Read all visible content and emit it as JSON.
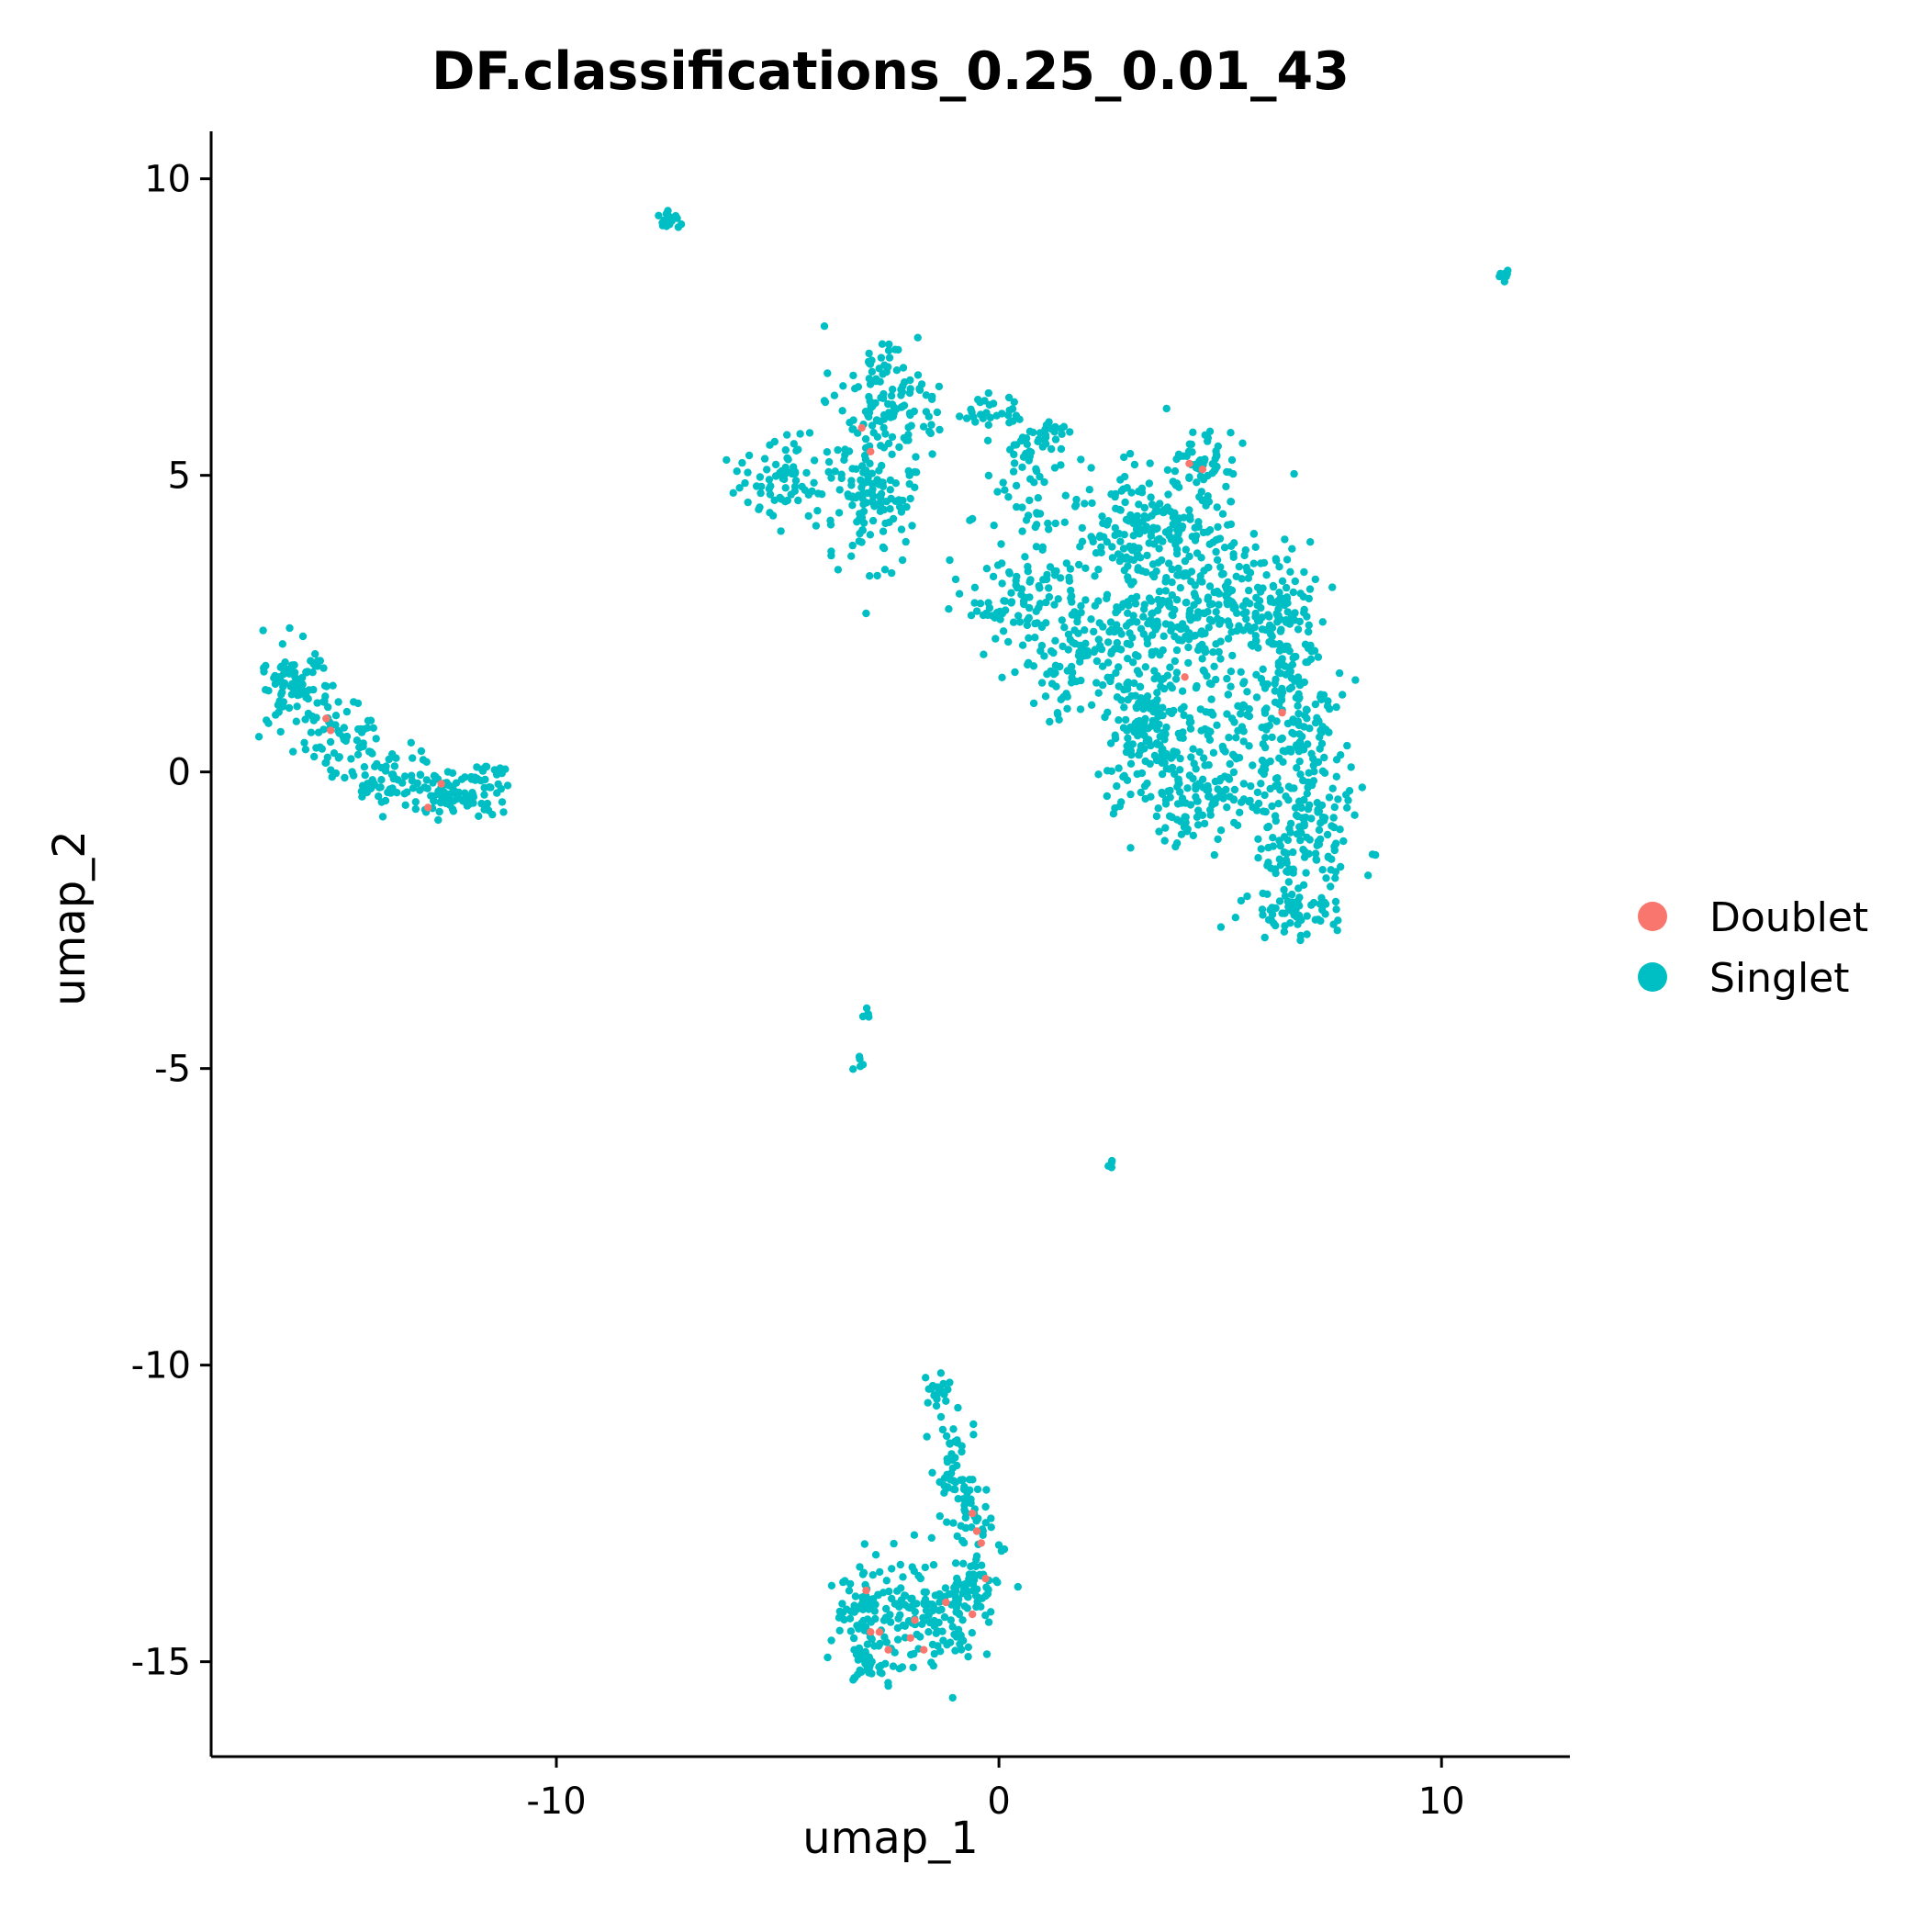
{
  "chart_data": {
    "type": "scatter",
    "title": "DF.classifications_0.25_0.01_43",
    "xlabel": "umap_1",
    "ylabel": "umap_2",
    "xlim": [
      -17.8,
      12.9
    ],
    "ylim": [
      -16.6,
      10.8
    ],
    "x_ticks": [
      -10,
      0,
      10
    ],
    "x_tick_labels": [
      "-10",
      "0",
      "10"
    ],
    "y_ticks": [
      10,
      5,
      0,
      -5,
      -10,
      -15
    ],
    "y_tick_labels": [
      "10",
      "5",
      "0",
      "-5",
      "-10",
      "-15"
    ],
    "grid": false,
    "legend_position": "right",
    "series": [
      {
        "name": "Doublet",
        "color": "#F8766D",
        "points": [
          [
            -3.1,
            5.8
          ],
          [
            -2.9,
            5.4
          ],
          [
            4.3,
            5.2
          ],
          [
            4.6,
            5.1
          ],
          [
            4.2,
            1.6
          ],
          [
            6.4,
            1.0
          ],
          [
            -15.2,
            0.9
          ],
          [
            -15.1,
            0.7
          ],
          [
            -12.6,
            -0.2
          ],
          [
            -12.9,
            -0.6
          ],
          [
            -0.6,
            -12.5
          ],
          [
            -0.5,
            -12.8
          ],
          [
            -0.4,
            -13.0
          ],
          [
            -0.3,
            -13.6
          ],
          [
            -0.6,
            -14.2
          ],
          [
            -1.2,
            -14.0
          ],
          [
            -1.9,
            -14.3
          ],
          [
            -2.7,
            -14.5
          ],
          [
            -2.5,
            -14.8
          ],
          [
            -2.0,
            -14.6
          ],
          [
            -1.7,
            -14.8
          ],
          [
            -2.9,
            -14.5
          ],
          [
            -3.0,
            -13.8
          ]
        ]
      },
      {
        "name": "Singlet",
        "color": "#00BFC4",
        "clusters": [
          {
            "cx": -7.5,
            "cy": 9.3,
            "sx": 0.15,
            "sy": 0.12,
            "n": 16
          },
          {
            "cx": 11.4,
            "cy": 8.4,
            "sx": 0.08,
            "sy": 0.08,
            "n": 8
          },
          {
            "cx": -3.2,
            "cy": -4.9,
            "sx": 0.06,
            "sy": 0.06,
            "n": 5
          },
          {
            "cx": -3.0,
            "cy": -4.1,
            "sx": 0.06,
            "sy": 0.05,
            "n": 5
          },
          {
            "cx": 2.5,
            "cy": -6.6,
            "sx": 0.08,
            "sy": 0.05,
            "n": 6
          },
          {
            "cx": -4.8,
            "cy": 5.0,
            "sx": 0.6,
            "sy": 0.35,
            "n": 70
          },
          {
            "cx": -2.9,
            "cy": 4.6,
            "sx": 0.55,
            "sy": 0.6,
            "n": 130
          },
          {
            "cx": -2.6,
            "cy": 6.2,
            "sx": 0.6,
            "sy": 0.45,
            "n": 120
          },
          {
            "cx": -0.3,
            "cy": 6.1,
            "sx": 0.4,
            "sy": 0.15,
            "n": 25
          },
          {
            "cx": 0.9,
            "cy": 5.7,
            "sx": 0.4,
            "sy": 0.3,
            "n": 50
          },
          {
            "cx": 0.8,
            "cy": 4.4,
            "sx": 0.7,
            "sy": 0.5,
            "n": 40
          },
          {
            "cx": 0.6,
            "cy": 2.9,
            "sx": 0.7,
            "sy": 0.4,
            "n": 90
          },
          {
            "cx": 1.6,
            "cy": 1.8,
            "sx": 0.7,
            "sy": 0.5,
            "n": 90
          },
          {
            "cx": 3.2,
            "cy": 4.2,
            "sx": 0.7,
            "sy": 0.5,
            "n": 150
          },
          {
            "cx": 4.7,
            "cy": 5.2,
            "sx": 0.35,
            "sy": 0.3,
            "n": 50
          },
          {
            "cx": 3.4,
            "cy": 2.6,
            "sx": 0.9,
            "sy": 0.6,
            "n": 160
          },
          {
            "cx": 5.0,
            "cy": 3.0,
            "sx": 0.8,
            "sy": 0.8,
            "n": 170
          },
          {
            "cx": 6.4,
            "cy": 2.4,
            "sx": 0.4,
            "sy": 0.6,
            "n": 120
          },
          {
            "cx": 3.4,
            "cy": 0.6,
            "sx": 0.5,
            "sy": 0.6,
            "n": 150
          },
          {
            "cx": 5.2,
            "cy": 0.5,
            "sx": 0.8,
            "sy": 0.7,
            "n": 140
          },
          {
            "cx": 6.8,
            "cy": 0.3,
            "sx": 0.6,
            "sy": 0.9,
            "n": 130
          },
          {
            "cx": 4.5,
            "cy": -0.6,
            "sx": 0.9,
            "sy": 0.3,
            "n": 80
          },
          {
            "cx": 7.0,
            "cy": -1.2,
            "sx": 0.6,
            "sy": 0.5,
            "n": 90
          },
          {
            "cx": 6.6,
            "cy": -2.3,
            "sx": 0.5,
            "sy": 0.25,
            "n": 60
          },
          {
            "cx": -15.9,
            "cy": 1.5,
            "sx": 0.45,
            "sy": 0.35,
            "n": 90
          },
          {
            "cx": -14.8,
            "cy": 0.6,
            "sx": 0.45,
            "sy": 0.35,
            "n": 60
          },
          {
            "cx": -13.8,
            "cy": -0.1,
            "sx": 0.5,
            "sy": 0.25,
            "n": 60
          },
          {
            "cx": -12.4,
            "cy": -0.4,
            "sx": 0.6,
            "sy": 0.22,
            "n": 80
          },
          {
            "cx": -11.5,
            "cy": -0.1,
            "sx": 0.25,
            "sy": 0.15,
            "n": 20
          },
          {
            "cx": -1.4,
            "cy": -10.5,
            "sx": 0.15,
            "sy": 0.25,
            "n": 22
          },
          {
            "cx": -1.1,
            "cy": -11.6,
            "sx": 0.25,
            "sy": 0.4,
            "n": 35
          },
          {
            "cx": -0.6,
            "cy": -12.6,
            "sx": 0.25,
            "sy": 0.4,
            "n": 40
          },
          {
            "cx": -0.5,
            "cy": -13.6,
            "sx": 0.3,
            "sy": 0.35,
            "n": 45
          },
          {
            "cx": -1.4,
            "cy": -14.2,
            "sx": 0.5,
            "sy": 0.45,
            "n": 120
          },
          {
            "cx": -2.8,
            "cy": -14.2,
            "sx": 0.4,
            "sy": 0.45,
            "n": 110
          },
          {
            "cx": -2.9,
            "cy": -15.1,
            "sx": 0.25,
            "sy": 0.15,
            "n": 25
          }
        ]
      }
    ]
  }
}
